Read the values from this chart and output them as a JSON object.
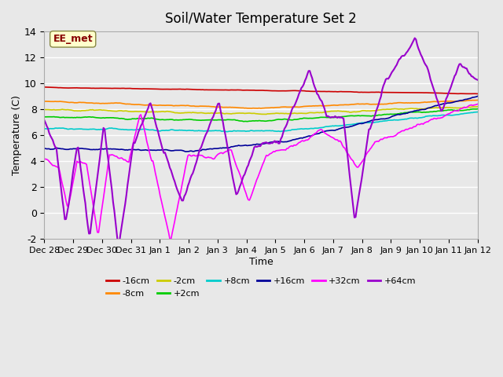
{
  "title": "Soil/Water Temperature Set 2",
  "xlabel": "Time",
  "ylabel": "Temperature (C)",
  "ylim": [
    -2,
    14
  ],
  "yticks": [
    -2,
    0,
    2,
    4,
    6,
    8,
    10,
    12,
    14
  ],
  "xtick_labels": [
    "Dec 28",
    "Dec 29",
    "Dec 30",
    "Dec 31",
    "Jan 1",
    "Jan 2",
    "Jan 3",
    "Jan 4",
    "Jan 5",
    "Jan 6",
    "Jan 7",
    "Jan 8",
    "Jan 9",
    "Jan 10",
    "Jan 11",
    "Jan 12"
  ],
  "series_colors": {
    "-16cm": "#cc0000",
    "-8cm": "#ff8800",
    "-2cm": "#cccc00",
    "+2cm": "#00cc00",
    "+8cm": "#00cccc",
    "+16cm": "#000099",
    "+32cm": "#ff00ff",
    "+64cm": "#9900cc"
  },
  "background_color": "#e8e8e8",
  "annotation_box_color": "#ffffcc",
  "annotation_text": "EE_met",
  "annotation_text_color": "#880000"
}
